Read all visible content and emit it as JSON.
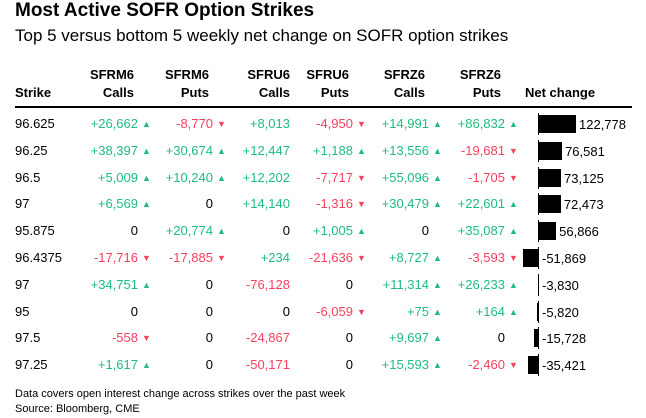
{
  "title": "Most Active SOFR Option Strikes",
  "subtitle": "Top 5 versus bottom 5 weekly net change on SOFR option strikes",
  "headers": [
    [
      "",
      "Strike"
    ],
    [
      "SFRM6",
      "Calls"
    ],
    [
      "SFRM6",
      "Puts"
    ],
    [
      "SFRU6",
      "Calls"
    ],
    [
      "SFRU6",
      "Puts"
    ],
    [
      "SFRZ6",
      "Calls"
    ],
    [
      "SFRZ6",
      "Puts"
    ],
    [
      "",
      "Net change"
    ]
  ],
  "colors": {
    "positive": "#1dbd7e",
    "negative": "#f5405f",
    "bar": "#000000"
  },
  "chart_data": {
    "type": "table",
    "columns": [
      "Strike",
      "SFRM6 Calls",
      "SFRM6 Puts",
      "SFRU6 Calls",
      "SFRU6 Puts",
      "SFRZ6 Calls",
      "SFRZ6 Puts",
      "Net change"
    ],
    "rows": [
      {
        "strike": "96.625",
        "cells": [
          "+26,662",
          "-8,770",
          "+8,013",
          "-4,950",
          "+14,991",
          "+86,832"
        ],
        "arrows": [
          1,
          1,
          0,
          1,
          1,
          1
        ],
        "net": 122778,
        "net_label": "122,778"
      },
      {
        "strike": "96.25",
        "cells": [
          "+38,397",
          "+30,674",
          "+12,447",
          "+1,188",
          "+13,556",
          "-19,681"
        ],
        "arrows": [
          1,
          1,
          0,
          1,
          1,
          1
        ],
        "net": 76581,
        "net_label": "76,581"
      },
      {
        "strike": "96.5",
        "cells": [
          "+5,009",
          "+10,240",
          "+12,202",
          "-7,717",
          "+55,096",
          "-1,705"
        ],
        "arrows": [
          1,
          1,
          0,
          1,
          1,
          1
        ],
        "net": 73125,
        "net_label": "73,125"
      },
      {
        "strike": "97",
        "cells": [
          "+6,569",
          "0",
          "+14,140",
          "-1,316",
          "+30,479",
          "+22,601"
        ],
        "arrows": [
          1,
          0,
          0,
          1,
          1,
          1
        ],
        "net": 72473,
        "net_label": "72,473"
      },
      {
        "strike": "95.875",
        "cells": [
          "0",
          "+20,774",
          "0",
          "+1,005",
          "0",
          "+35,087"
        ],
        "arrows": [
          0,
          1,
          0,
          1,
          0,
          1
        ],
        "net": 56866,
        "net_label": "56,866"
      },
      {
        "strike": "96.4375",
        "cells": [
          "-17,716",
          "-17,885",
          "+234",
          "-21,636",
          "+8,727",
          "-3,593"
        ],
        "arrows": [
          1,
          1,
          0,
          1,
          1,
          1
        ],
        "net": -51869,
        "net_label": "-51,869"
      },
      {
        "strike": "97",
        "cells": [
          "+34,751",
          "0",
          "-76,128",
          "0",
          "+11,314",
          "+26,233"
        ],
        "arrows": [
          1,
          0,
          0,
          0,
          1,
          1
        ],
        "net": -3830,
        "net_label": "-3,830"
      },
      {
        "strike": "95",
        "cells": [
          "0",
          "0",
          "0",
          "-6,059",
          "+75",
          "+164"
        ],
        "arrows": [
          0,
          0,
          0,
          1,
          1,
          1
        ],
        "net": -5820,
        "net_label": "-5,820"
      },
      {
        "strike": "97.5",
        "cells": [
          "-558",
          "0",
          "-24,867",
          "0",
          "+9,697",
          "0"
        ],
        "arrows": [
          1,
          0,
          0,
          0,
          1,
          0
        ],
        "net": -15728,
        "net_label": "-15,728"
      },
      {
        "strike": "97.25",
        "cells": [
          "+1,617",
          "0",
          "-50,171",
          "0",
          "+15,593",
          "-2,460"
        ],
        "arrows": [
          1,
          0,
          0,
          0,
          1,
          1
        ],
        "net": -35421,
        "net_label": "-35,421"
      }
    ]
  },
  "footer": {
    "note": "Data covers open interest change across strikes over the past week",
    "source": "Source: Bloomberg, CME"
  },
  "icons": {
    "up": "triangle-up-icon",
    "down": "triangle-down-icon"
  }
}
